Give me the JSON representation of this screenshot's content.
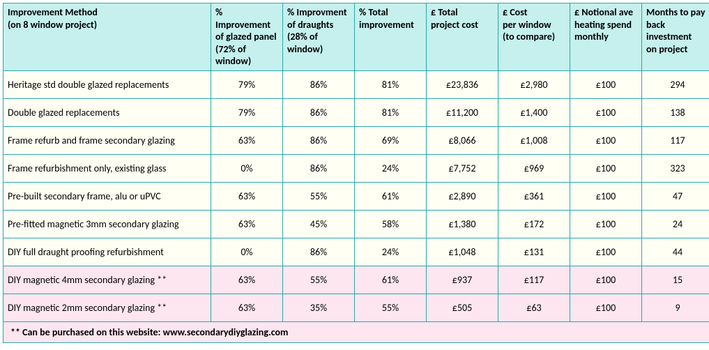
{
  "table": {
    "header_bg": "#c5f0ed",
    "row_bg_normal": "#fffff4",
    "row_bg_highlight": "#fde6ef",
    "border_color": "#2aa8a8",
    "font_family": "Calibri",
    "header_fontsize": 14,
    "cell_fontsize": 14,
    "columns": [
      {
        "key": "method",
        "h1": "Improvement Method",
        "h2": "(on 8 window project)",
        "h3": ""
      },
      {
        "key": "glazed",
        "h1": "% Improvement",
        "h2": "of glazed panel",
        "h3": "(72% of window)"
      },
      {
        "key": "draughts",
        "h1": "% Improvment",
        "h2": "of draughts",
        "h3": "(28% of window)"
      },
      {
        "key": "total_impr",
        "h1": "% Total",
        "h2": "improvement",
        "h3": ""
      },
      {
        "key": "project_cost",
        "h1": "£ Total",
        "h2": "project cost",
        "h3": ""
      },
      {
        "key": "cost_window",
        "h1": "£ Cost",
        "h2": "per window",
        "h3": "(to compare)"
      },
      {
        "key": "heating",
        "h1": "£ Notional ave",
        "h2": "heating spend",
        "h3": "monthly"
      },
      {
        "key": "payback",
        "h1": "Months to pay",
        "h2": "back investment",
        "h3": "on project"
      }
    ],
    "rows": [
      {
        "method": "Heritage std double glazed replacements",
        "glazed": "79%",
        "draughts": "86%",
        "total_impr": "81%",
        "project_cost": "£23,836",
        "cost_window": "£2,980",
        "heating": "£100",
        "payback": "294",
        "highlight": false
      },
      {
        "method": "Double glazed replacements",
        "glazed": "79%",
        "draughts": "86%",
        "total_impr": "81%",
        "project_cost": "£11,200",
        "cost_window": "£1,400",
        "heating": "£100",
        "payback": "138",
        "highlight": false
      },
      {
        "method": "Frame refurb and frame secondary glazing",
        "glazed": "63%",
        "draughts": "86%",
        "total_impr": "69%",
        "project_cost": "£8,066",
        "cost_window": "£1,008",
        "heating": "£100",
        "payback": "117",
        "highlight": false
      },
      {
        "method": "Frame refurbishment only, existing glass",
        "glazed": "0%",
        "draughts": "86%",
        "total_impr": "24%",
        "project_cost": "£7,752",
        "cost_window": "£969",
        "heating": "£100",
        "payback": "323",
        "highlight": false
      },
      {
        "method": "Pre-built secondary frame, alu or uPVC",
        "glazed": "63%",
        "draughts": "55%",
        "total_impr": "61%",
        "project_cost": "£2,890",
        "cost_window": "£361",
        "heating": "£100",
        "payback": "47",
        "highlight": false
      },
      {
        "method": "Pre-fitted magnetic 3mm secondary glazing",
        "glazed": "63%",
        "draughts": "45%",
        "total_impr": "58%",
        "project_cost": "£1,380",
        "cost_window": "£172",
        "heating": "£100",
        "payback": "24",
        "highlight": false
      },
      {
        "method": "DIY full draught proofing refurbishment",
        "glazed": "0%",
        "draughts": "86%",
        "total_impr": "24%",
        "project_cost": "£1,048",
        "cost_window": "£131",
        "heating": "£100",
        "payback": "44",
        "highlight": false
      },
      {
        "method": "DIY magnetic 4mm secondary glazing **",
        "glazed": "63%",
        "draughts": "55%",
        "total_impr": "61%",
        "project_cost": "£937",
        "cost_window": "£117",
        "heating": "£100",
        "payback": "15",
        "highlight": true
      },
      {
        "method": "DIY magnetic 2mm secondary glazing **",
        "glazed": "63%",
        "draughts": "35%",
        "total_impr": "55%",
        "project_cost": "£505",
        "cost_window": "£63",
        "heating": "£100",
        "payback": "9",
        "highlight": true
      }
    ],
    "footnote": "** Can be purchased on this website:  www.secondarydiyglazing.com"
  }
}
